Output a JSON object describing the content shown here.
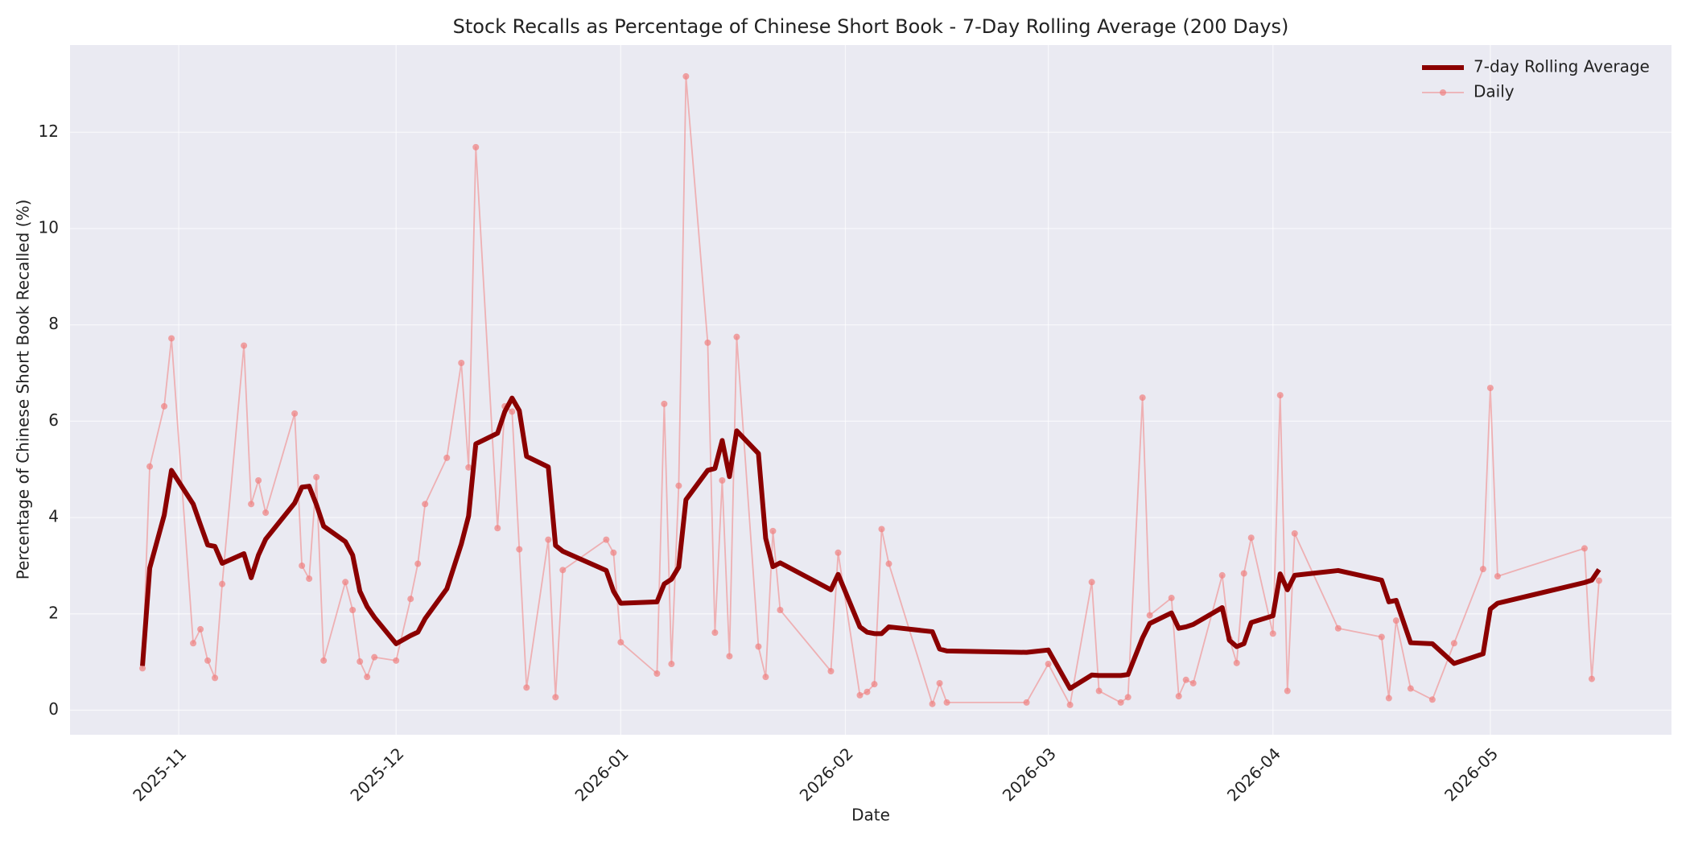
{
  "chart_data": {
    "type": "line",
    "title": "Stock Recalls as Percentage of Chinese Short Book - 7-Day Rolling Average (200 Days)",
    "xlabel": "Date",
    "ylabel": "Percentage of Chinese Short Book Recalled (%)",
    "x": [
      -5,
      -4,
      -2,
      -1,
      2,
      3,
      4,
      5,
      6,
      9,
      10,
      11,
      12,
      16,
      17,
      18,
      19,
      20,
      23,
      24,
      25,
      26,
      27,
      30,
      32,
      33,
      34,
      37,
      39,
      40,
      41,
      44,
      45,
      46,
      47,
      48,
      51,
      52,
      53,
      59,
      60,
      61,
      66,
      67,
      68,
      69,
      70,
      73,
      74,
      75,
      76,
      77,
      80,
      81,
      82,
      83,
      90,
      91,
      94,
      95,
      96,
      97,
      98,
      104,
      105,
      106,
      117,
      120,
      123,
      126,
      127,
      130,
      131,
      133,
      134,
      137,
      138,
      139,
      140,
      144,
      145,
      146,
      147,
      148,
      151,
      152,
      153,
      154,
      160,
      166,
      167,
      168,
      170,
      173,
      176,
      180,
      181,
      182,
      194,
      195,
      196
    ],
    "xlim": [
      -15,
      206
    ],
    "xticks": [
      {
        "value": 0,
        "label": "2025-11"
      },
      {
        "value": 30,
        "label": "2025-12"
      },
      {
        "value": 61,
        "label": "2026-01"
      },
      {
        "value": 92,
        "label": "2026-02"
      },
      {
        "value": 120,
        "label": "2026-03"
      },
      {
        "value": 151,
        "label": "2026-04"
      },
      {
        "value": 181,
        "label": "2026-05"
      }
    ],
    "ylim": [
      -0.51,
      13.81
    ],
    "yticks": [
      0,
      2,
      4,
      6,
      8,
      10,
      12
    ],
    "grid": true,
    "legend": "upper right",
    "series": [
      {
        "name": "7-day Rolling Average",
        "color": "#8b0000",
        "marker": false,
        "values": [
          0.92,
          2.95,
          4.05,
          4.98,
          4.28,
          3.85,
          3.43,
          3.4,
          3.05,
          3.25,
          2.75,
          3.22,
          3.55,
          4.3,
          4.63,
          4.65,
          4.27,
          3.82,
          3.5,
          3.22,
          2.47,
          2.15,
          1.93,
          1.38,
          1.55,
          1.62,
          1.9,
          2.52,
          3.45,
          4.03,
          5.53,
          5.75,
          6.2,
          6.48,
          6.22,
          5.27,
          5.05,
          3.42,
          3.3,
          2.9,
          2.47,
          2.22,
          2.25,
          2.62,
          2.72,
          2.97,
          4.37,
          4.98,
          5.02,
          5.6,
          4.85,
          5.8,
          5.33,
          3.57,
          2.98,
          3.06,
          2.5,
          2.82,
          1.73,
          1.62,
          1.59,
          1.59,
          1.73,
          1.63,
          1.27,
          1.23,
          1.2,
          1.25,
          0.45,
          0.73,
          0.72,
          0.72,
          0.74,
          1.5,
          1.8,
          2.02,
          1.7,
          1.73,
          1.78,
          2.13,
          1.45,
          1.32,
          1.38,
          1.82,
          1.96,
          2.83,
          2.5,
          2.8,
          2.9,
          2.7,
          2.25,
          2.28,
          1.4,
          1.38,
          0.97,
          1.17,
          2.1,
          2.22,
          2.65,
          2.7,
          2.92
        ]
      },
      {
        "name": "Daily",
        "color": "#f08080",
        "marker": true,
        "values": [
          0.87,
          5.06,
          6.31,
          7.72,
          1.39,
          1.68,
          1.03,
          0.67,
          2.62,
          7.57,
          4.28,
          4.77,
          4.1,
          6.16,
          3.0,
          2.73,
          4.84,
          1.03,
          2.66,
          2.08,
          1.01,
          0.69,
          1.1,
          1.03,
          2.31,
          3.04,
          4.28,
          5.24,
          7.21,
          5.04,
          11.69,
          3.78,
          6.31,
          6.2,
          3.34,
          0.47,
          3.54,
          0.27,
          2.91,
          3.54,
          3.27,
          1.41,
          0.76,
          6.36,
          0.96,
          4.66,
          13.16,
          7.63,
          1.61,
          4.77,
          1.12,
          7.75,
          1.32,
          0.69,
          3.72,
          2.08,
          0.81,
          3.27,
          0.31,
          0.38,
          0.54,
          3.76,
          3.04,
          0.13,
          0.56,
          0.16,
          0.16,
          0.96,
          0.11,
          2.66,
          0.4,
          0.16,
          0.27,
          6.49,
          1.97,
          2.33,
          0.29,
          0.63,
          0.56,
          2.8,
          1.48,
          0.98,
          2.84,
          3.58,
          1.59,
          6.54,
          0.4,
          3.67,
          1.7,
          1.52,
          0.25,
          1.86,
          0.45,
          0.22,
          1.39,
          2.93,
          6.69,
          2.78,
          3.36,
          0.65,
          2.69
        ]
      }
    ]
  }
}
